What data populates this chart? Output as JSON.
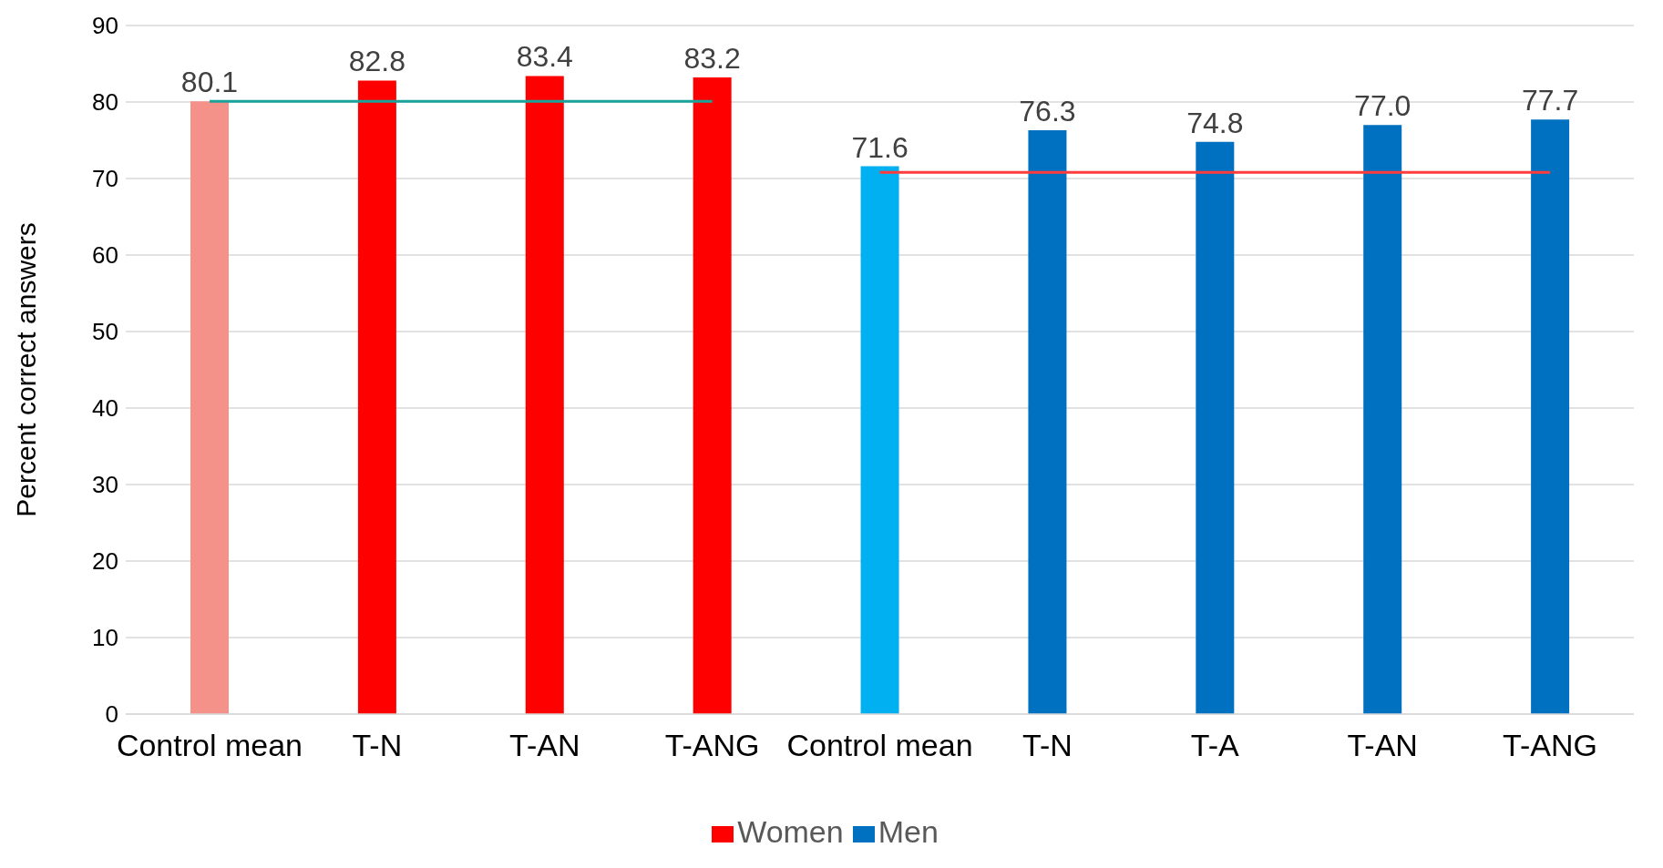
{
  "chart_data": {
    "type": "bar",
    "ylabel": "Percent correct answers",
    "categories": [
      "Control mean",
      "T-N",
      "T-AN",
      "T-ANG",
      "Control mean",
      "T-N",
      "T-A",
      "T-AN",
      "T-ANG"
    ],
    "series": [
      {
        "name": "Women",
        "color": "#ff0000",
        "colors": [
          "#f4928a",
          "#ff0000",
          "#ff0000",
          "#ff0000",
          null,
          null,
          null,
          null,
          null
        ],
        "values": [
          80.1,
          82.8,
          83.4,
          83.2,
          null,
          null,
          null,
          null,
          null
        ],
        "value_labels": [
          "80.1",
          "82.8",
          "83.4",
          "83.2",
          null,
          null,
          null,
          null,
          null
        ]
      },
      {
        "name": "Men",
        "color": "#0070c0",
        "colors": [
          null,
          null,
          null,
          null,
          "#00b0f0",
          "#0070c0",
          "#0070c0",
          "#0070c0",
          "#0070c0"
        ],
        "values": [
          null,
          null,
          null,
          null,
          71.6,
          76.3,
          74.8,
          77.0,
          77.7
        ],
        "value_labels": [
          null,
          null,
          null,
          null,
          "71.6",
          "76.3",
          "74.8",
          "77.0",
          "77.7"
        ]
      },
      {
        "type": "line",
        "color": "#1aa39a",
        "values": [
          80.1,
          80.1,
          80.1,
          80.1,
          null,
          null,
          null,
          null,
          null
        ]
      },
      {
        "type": "line",
        "color": "#ff3b3b",
        "values": [
          null,
          null,
          null,
          null,
          70.8,
          70.8,
          70.8,
          70.8,
          70.8
        ]
      }
    ],
    "stacked": true,
    "ylim": [
      0,
      90
    ],
    "yticks": [
      0,
      10,
      20,
      30,
      40,
      50,
      60,
      70,
      80,
      90
    ],
    "grid": "y",
    "legend": "bottom",
    "marker": "none",
    "line_style": "solid"
  }
}
